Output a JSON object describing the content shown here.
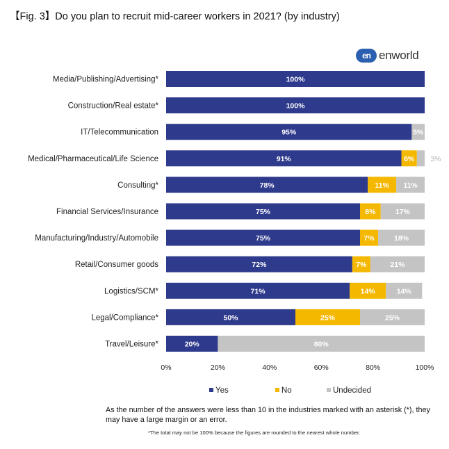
{
  "header": {
    "title": "【Fig. 3】Do you plan to recruit mid-career workers in 2021? (by industry)"
  },
  "logo": {
    "mark": "en",
    "word": "enworld"
  },
  "chart_data": {
    "type": "bar",
    "orientation": "horizontal",
    "stacked": true,
    "categories": [
      "Media/Publishing/Advertising*",
      "Construction/Real estate*",
      "IT/Telecommunication",
      "Medical/Pharmaceutical/Life Science",
      "Consulting*",
      "Financial Services/Insurance",
      "Manufacturing/Industry/Automobile",
      "Retail/Consumer goods",
      "Logistics/SCM*",
      "Legal/Compliance*",
      "Travel/Leisure*"
    ],
    "series": [
      {
        "name": "Yes",
        "color": "#2e3a8c",
        "values": [
          100,
          100,
          95,
          91,
          78,
          75,
          75,
          72,
          71,
          50,
          20
        ],
        "labels": [
          "100%",
          "100%",
          "95%",
          "91%",
          "78%",
          "75%",
          "75%",
          "72%",
          "71%",
          "50%",
          "20%"
        ]
      },
      {
        "name": "No",
        "color": "#f5b800",
        "values": [
          0,
          0,
          0,
          6,
          11,
          8,
          7,
          7,
          14,
          25,
          0
        ],
        "labels": [
          "",
          "",
          "",
          "6%",
          "11%",
          "8%",
          "7%",
          "7%",
          "14%",
          "25%",
          ""
        ]
      },
      {
        "name": "Undecided",
        "color": "#c4c4c4",
        "values": [
          0,
          0,
          5,
          3,
          11,
          17,
          18,
          21,
          14,
          25,
          80
        ],
        "labels": [
          "",
          "",
          "5%",
          "3%",
          "11%",
          "17%",
          "18%",
          "21%",
          "14%",
          "25%",
          "80%"
        ]
      }
    ],
    "xlim": [
      0,
      100
    ],
    "x_ticks": [
      "0%",
      "20%",
      "40%",
      "60%",
      "80%",
      "100%"
    ],
    "legend_position": "bottom",
    "grid": false
  },
  "footnotes": {
    "note1": "As the number of the answers were less than 10 in the industries marked with an asterisk (*), they may have a large margin or an error.",
    "note2": "*The total may not be 100% because the figures are rounded to the nearest whole number."
  }
}
